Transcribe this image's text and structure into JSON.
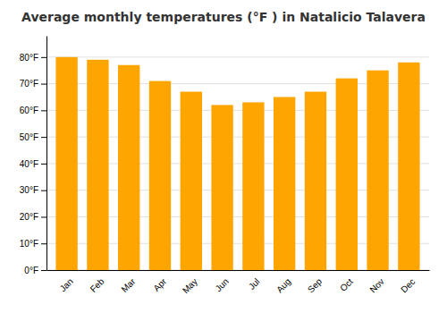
{
  "chart_data": {
    "type": "bar",
    "title": "Average monthly temperatures (°F ) in Natalicio Talavera",
    "categories": [
      "Jan",
      "Feb",
      "Mar",
      "Apr",
      "May",
      "Jun",
      "Jul",
      "Aug",
      "Sep",
      "Oct",
      "Nov",
      "Dec"
    ],
    "values": [
      80,
      79,
      77,
      71,
      67,
      62,
      63,
      65,
      67,
      72,
      75,
      78
    ],
    "color": "#FFA500",
    "ylim": [
      0,
      88
    ],
    "yticks": [
      {
        "value": 0,
        "label": "0°F"
      },
      {
        "value": 10,
        "label": "10°F"
      },
      {
        "value": 20,
        "label": "20°F"
      },
      {
        "value": 30,
        "label": "30°F"
      },
      {
        "value": 40,
        "label": "40°F"
      },
      {
        "value": 50,
        "label": "50°F"
      },
      {
        "value": 60,
        "label": "60°F"
      },
      {
        "value": 70,
        "label": "70°F"
      },
      {
        "value": 80,
        "label": "80°F"
      }
    ],
    "grid": true
  }
}
